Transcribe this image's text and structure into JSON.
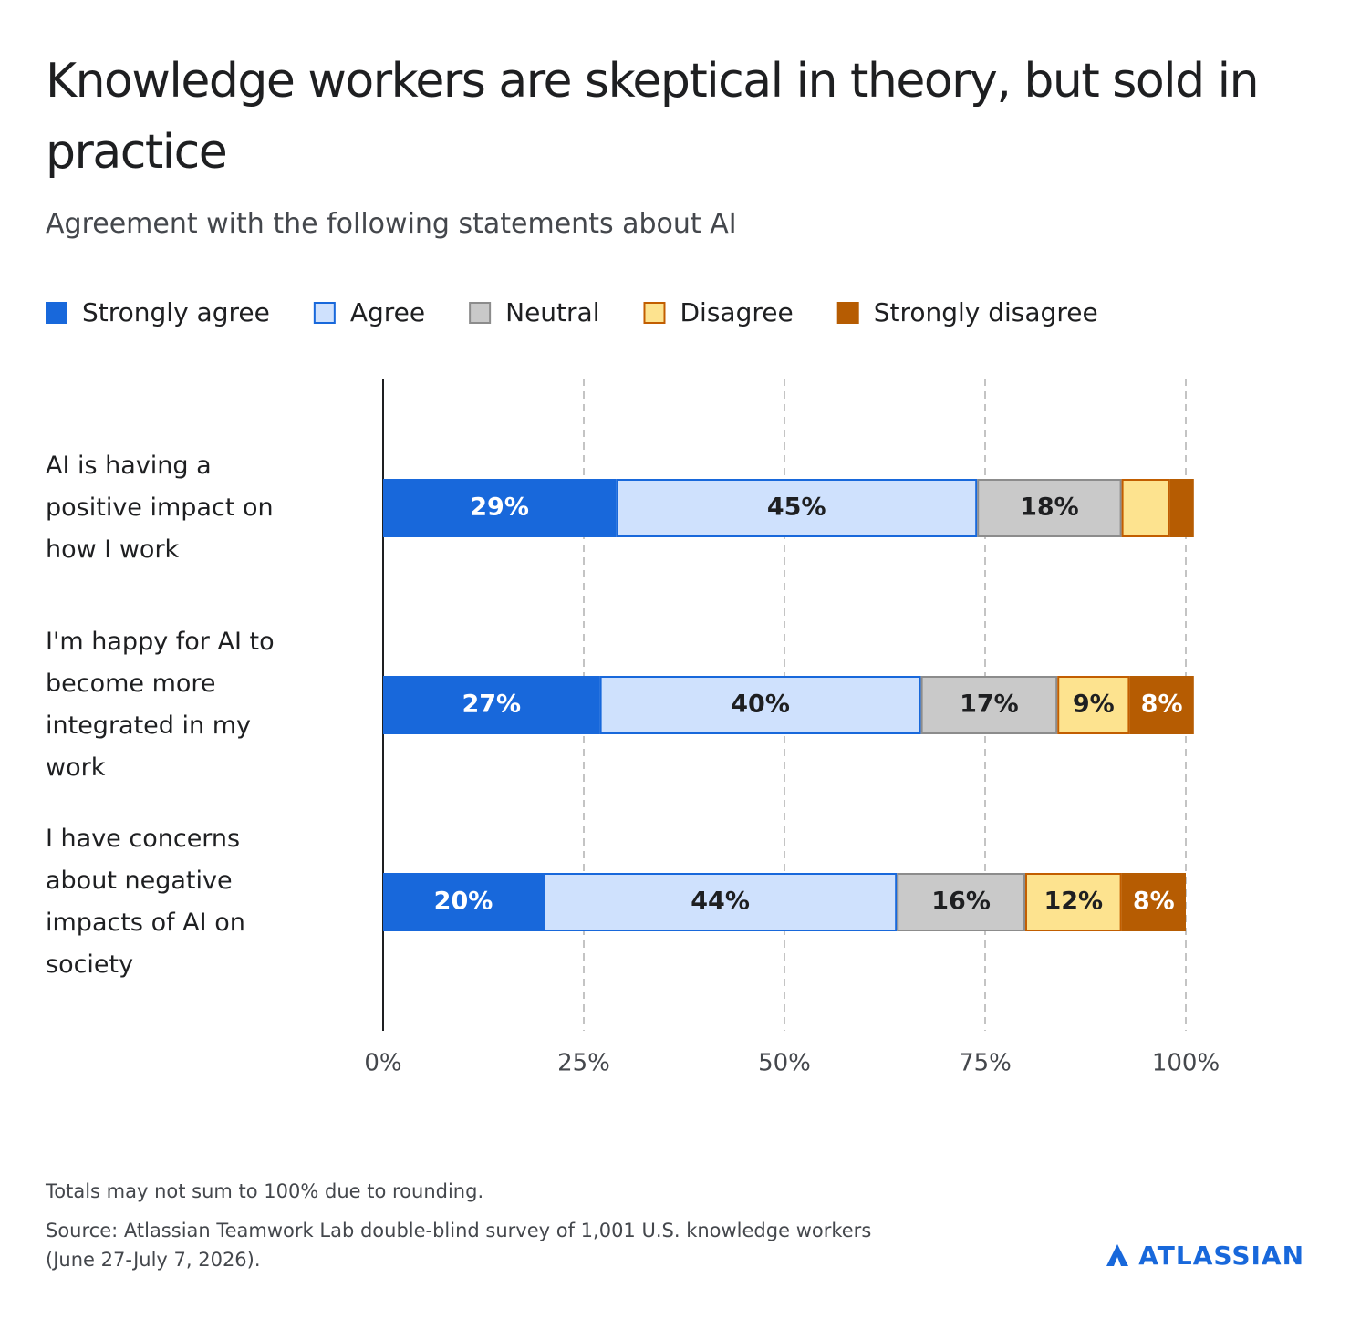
{
  "chart_data": {
    "type": "stacked-bar-horizontal",
    "title": "Knowledge workers are skeptical in theory, but sold in practice",
    "subtitle": "Agreement with the following statements about AI",
    "categories": [
      "AI is having a positive impact on how I work",
      "I'm happy for AI to become more integrated in my work",
      "I have concerns about negative impacts of AI on society"
    ],
    "series": [
      {
        "name": "Strongly agree",
        "color": "#1868db",
        "border": "#1868db",
        "values": [
          29,
          27,
          20
        ],
        "value_labels": [
          "29%",
          "27%",
          "20%"
        ]
      },
      {
        "name": "Agree",
        "color": "#cfe1fd",
        "border": "#1868db",
        "values": [
          45,
          40,
          44
        ],
        "value_labels": [
          "45%",
          "40%",
          "44%"
        ]
      },
      {
        "name": "Neutral",
        "color": "#c9c9c9",
        "border": "#8c8c8c",
        "values": [
          18,
          17,
          16
        ],
        "value_labels": [
          "18%",
          "17%",
          "16%"
        ]
      },
      {
        "name": "Disagree",
        "color": "#fde38f",
        "border": "#c25e00",
        "values": [
          6,
          9,
          12
        ],
        "value_labels": [
          null,
          "9%",
          "12%"
        ]
      },
      {
        "name": "Strongly disagree",
        "color": "#b65c02",
        "border": "#b65c02",
        "values": [
          3,
          8,
          8
        ],
        "value_labels": [
          null,
          "8%",
          "8%"
        ]
      }
    ],
    "xlim": [
      0,
      100
    ],
    "xticks": [
      {
        "value": 0,
        "label": "0%"
      },
      {
        "value": 25,
        "label": "25%"
      },
      {
        "value": 50,
        "label": "50%"
      },
      {
        "value": 75,
        "label": "75%"
      },
      {
        "value": 100,
        "label": "100%"
      }
    ],
    "grid": true,
    "legend": "top",
    "footnote": "Totals may not sum to 100% due to rounding.",
    "source": "Source: Atlassian Teamwork Lab double-blind survey of 1,001 U.S. knowledge workers (June 27-July 7, 2026).",
    "brand": "ATLASSIAN"
  }
}
